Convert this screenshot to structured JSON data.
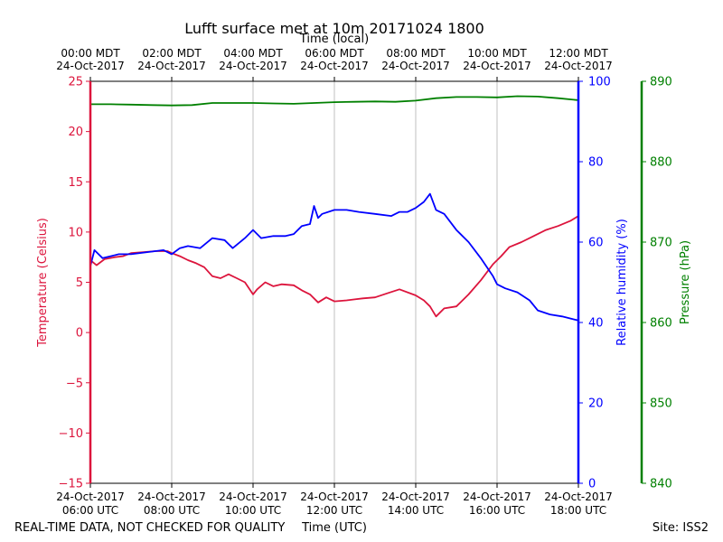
{
  "chart_data": {
    "type": "line",
    "title": "Lufft surface met at 10m 20171024 1800",
    "top_axis_label": "Time (local)",
    "bottom_axis_label": "Time (UTC)",
    "footer_left": "REAL-TIME DATA, NOT CHECKED FOR QUALITY",
    "footer_right": "Site: ISS2",
    "x_range_hours_utc": [
      6,
      18
    ],
    "x_ticks": [
      {
        "hour": 6,
        "utc_date": "24-Oct-2017",
        "utc_time": "06:00 UTC",
        "local_time": "00:00 MDT",
        "local_date": "24-Oct-2017"
      },
      {
        "hour": 8,
        "utc_date": "24-Oct-2017",
        "utc_time": "08:00 UTC",
        "local_time": "02:00 MDT",
        "local_date": "24-Oct-2017"
      },
      {
        "hour": 10,
        "utc_date": "24-Oct-2017",
        "utc_time": "10:00 UTC",
        "local_time": "04:00 MDT",
        "local_date": "24-Oct-2017"
      },
      {
        "hour": 12,
        "utc_date": "24-Oct-2017",
        "utc_time": "12:00 UTC",
        "local_time": "06:00 MDT",
        "local_date": "24-Oct-2017"
      },
      {
        "hour": 14,
        "utc_date": "24-Oct-2017",
        "utc_time": "14:00 UTC",
        "local_time": "08:00 MDT",
        "local_date": "24-Oct-2017"
      },
      {
        "hour": 16,
        "utc_date": "24-Oct-2017",
        "utc_time": "16:00 UTC",
        "local_time": "10:00 MDT",
        "local_date": "24-Oct-2017"
      },
      {
        "hour": 18,
        "utc_date": "24-Oct-2017",
        "utc_time": "18:00 UTC",
        "local_time": "12:00 MDT",
        "local_date": "24-Oct-2017"
      }
    ],
    "grid": "vertical",
    "axes": {
      "temperature": {
        "label": "Temperature (Celsius)",
        "range": [
          -15,
          25
        ],
        "ticks": [
          -15,
          -10,
          -5,
          0,
          5,
          10,
          15,
          20,
          25
        ],
        "color": "#dc143c"
      },
      "humidity": {
        "label": "Relative humidity (%)",
        "range": [
          0,
          100
        ],
        "ticks": [
          0,
          20,
          40,
          60,
          80,
          100
        ],
        "color": "#0000ff"
      },
      "pressure": {
        "label": "Pressure (hPa)",
        "range": [
          840,
          890
        ],
        "ticks": [
          840,
          850,
          860,
          870,
          880,
          890
        ],
        "color": "#008000"
      }
    },
    "series": [
      {
        "name": "Temperature",
        "axis": "temperature",
        "color": "#dc143c",
        "x": [
          6.0,
          6.15,
          6.35,
          6.6,
          6.8,
          7.0,
          7.3,
          7.6,
          7.9,
          8.0,
          8.2,
          8.4,
          8.6,
          8.8,
          9.0,
          9.2,
          9.4,
          9.6,
          9.8,
          10.0,
          10.1,
          10.3,
          10.5,
          10.7,
          11.0,
          11.2,
          11.4,
          11.6,
          11.8,
          12.0,
          12.3,
          12.5,
          12.7,
          13.0,
          13.3,
          13.6,
          14.0,
          14.2,
          14.35,
          14.5,
          14.7,
          15.0,
          15.3,
          15.6,
          15.9,
          16.1,
          16.3,
          16.6,
          16.9,
          17.2,
          17.5,
          17.8,
          18.0
        ],
        "y": [
          7.2,
          6.7,
          7.3,
          7.5,
          7.6,
          7.9,
          8.0,
          8.1,
          8.1,
          7.9,
          7.6,
          7.2,
          6.9,
          6.5,
          5.6,
          5.4,
          5.8,
          5.4,
          5.0,
          3.8,
          4.3,
          5.0,
          4.6,
          4.8,
          4.7,
          4.2,
          3.8,
          3.0,
          3.5,
          3.1,
          3.2,
          3.3,
          3.4,
          3.5,
          3.9,
          4.3,
          3.7,
          3.2,
          2.6,
          1.6,
          2.4,
          2.6,
          3.8,
          5.2,
          6.8,
          7.6,
          8.5,
          9.0,
          9.6,
          10.2,
          10.6,
          11.1,
          11.6
        ]
      },
      {
        "name": "Relative humidity",
        "axis": "humidity",
        "color": "#0000ff",
        "x": [
          6.0,
          6.1,
          6.3,
          6.5,
          6.7,
          7.0,
          7.4,
          7.8,
          8.0,
          8.2,
          8.4,
          8.7,
          9.0,
          9.3,
          9.5,
          9.8,
          10.0,
          10.2,
          10.5,
          10.8,
          11.0,
          11.2,
          11.4,
          11.5,
          11.6,
          11.7,
          12.0,
          12.3,
          12.6,
          13.0,
          13.4,
          13.6,
          13.8,
          14.0,
          14.2,
          14.35,
          14.5,
          14.7,
          15.0,
          15.3,
          15.6,
          15.9,
          16.0,
          16.2,
          16.5,
          16.8,
          17.0,
          17.3,
          17.6,
          18.0
        ],
        "y": [
          54.0,
          58.0,
          56.0,
          56.5,
          57.0,
          57.0,
          57.5,
          58.0,
          57.0,
          58.5,
          59.0,
          58.5,
          61.0,
          60.5,
          58.5,
          61.0,
          63.0,
          61.0,
          61.5,
          61.5,
          62.0,
          64.0,
          64.5,
          69.0,
          66.0,
          67.0,
          68.0,
          68.0,
          67.5,
          67.0,
          66.5,
          67.5,
          67.5,
          68.5,
          70.0,
          72.0,
          68.0,
          67.0,
          63.0,
          60.0,
          56.0,
          51.5,
          49.5,
          48.5,
          47.5,
          45.5,
          43.0,
          42.0,
          41.5,
          40.5
        ]
      },
      {
        "name": "Pressure",
        "axis": "pressure",
        "color": "#008000",
        "x": [
          6.0,
          6.5,
          7.0,
          7.5,
          8.0,
          8.5,
          9.0,
          9.5,
          10.0,
          10.5,
          11.0,
          11.5,
          12.0,
          12.5,
          13.0,
          13.5,
          14.0,
          14.5,
          15.0,
          15.5,
          16.0,
          16.5,
          17.0,
          17.5,
          18.0
        ],
        "y": [
          887.15,
          887.15,
          887.1,
          887.05,
          887.0,
          887.05,
          887.3,
          887.3,
          887.3,
          887.25,
          887.2,
          887.3,
          887.4,
          887.45,
          887.5,
          887.45,
          887.6,
          887.9,
          888.05,
          888.05,
          888.0,
          888.15,
          888.1,
          887.9,
          887.65
        ]
      }
    ]
  }
}
